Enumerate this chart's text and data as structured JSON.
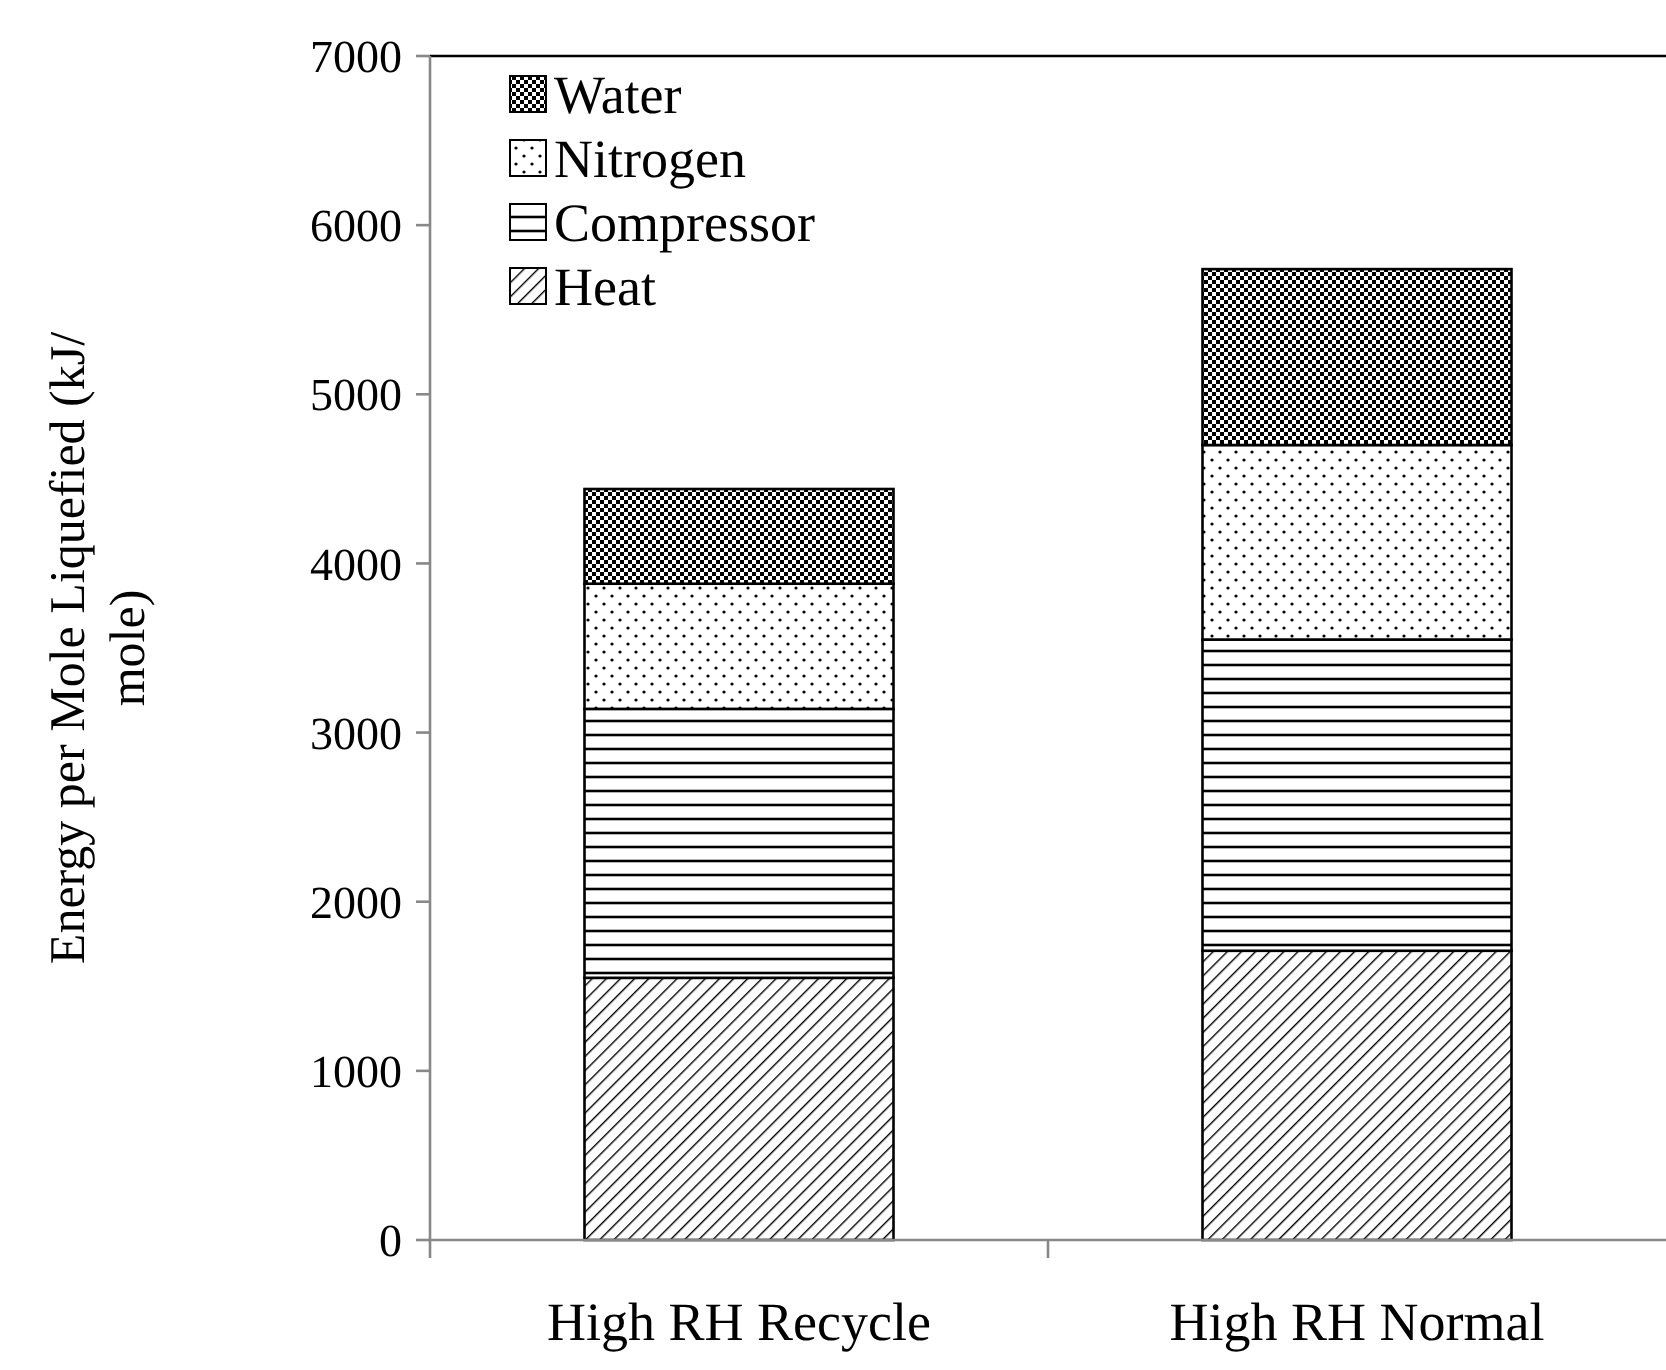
{
  "chart_data": {
    "type": "bar",
    "stacked": true,
    "ylabel": "Energy per Mole Liquefied (kJ/mole)",
    "categories": [
      "High RH Recycle",
      "High RH Normal"
    ],
    "ylim": [
      0,
      7000
    ],
    "yticks": [
      0,
      1000,
      2000,
      3000,
      4000,
      5000,
      6000,
      7000
    ],
    "legend": "top left",
    "grid": false,
    "series": [
      {
        "name": "Heat",
        "color": "#000000",
        "values": [
          1550,
          1710
        ]
      },
      {
        "name": "Compressor",
        "color": "#000000",
        "values": [
          1590,
          1840
        ]
      },
      {
        "name": "Nitrogen",
        "color": "#000000",
        "values": [
          740,
          1150
        ]
      },
      {
        "name": "Water",
        "color": "#000000",
        "values": [
          560,
          1040
        ]
      }
    ]
  }
}
